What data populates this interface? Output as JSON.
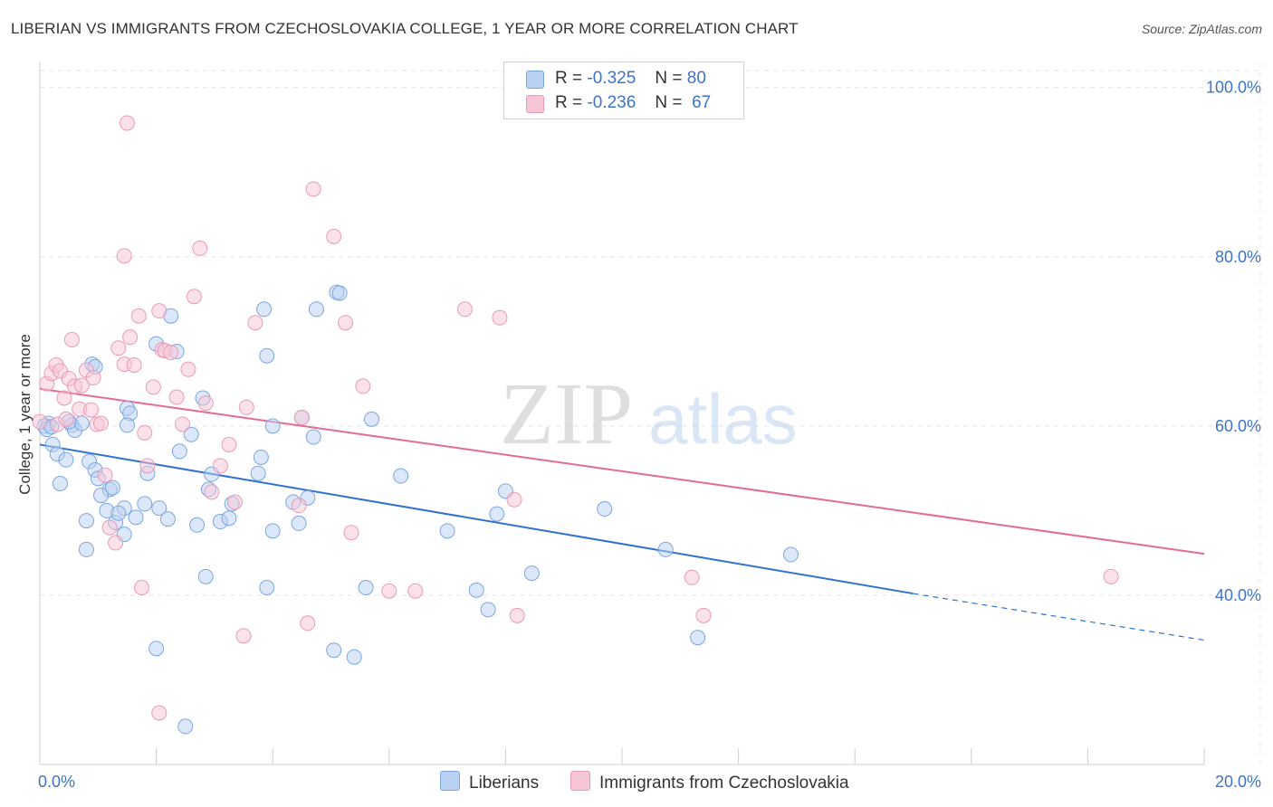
{
  "header": {
    "title": "LIBERIAN VS IMMIGRANTS FROM CZECHOSLOVAKIA COLLEGE, 1 YEAR OR MORE CORRELATION CHART",
    "source": "Source: ZipAtlas.com"
  },
  "watermark": {
    "zip": "ZIP",
    "atlas": "atlas"
  },
  "legend": {
    "r_label": "R =",
    "n_label": "N =",
    "series": [
      {
        "r": "-0.325",
        "n": "80"
      },
      {
        "r": "-0.236",
        "n": "67"
      }
    ]
  },
  "bottom_legend": [
    "Liberians",
    "Immigrants from Czechoslovakia"
  ],
  "colors": {
    "blue_fill": "#b9d2f3",
    "blue_stroke": "#7aa6e0",
    "blue_line": "#3070d0",
    "pink_fill": "#f7c6d6",
    "pink_stroke": "#ea9ab5",
    "pink_line": "#e46a97",
    "tick_text": "#3d74c9",
    "grid": "#e3e3e3"
  },
  "chart_data": {
    "type": "scatter",
    "title": "LIBERIAN VS IMMIGRANTS FROM CZECHOSLOVAKIA COLLEGE, 1 YEAR OR MORE CORRELATION CHART",
    "xlabel": "",
    "ylabel": "College, 1 year or more",
    "xlim": [
      0,
      20
    ],
    "ylim": [
      20,
      102
    ],
    "x_tick_labels": [
      "0.0%",
      "20.0%"
    ],
    "y_ticks": [
      40,
      60,
      80,
      100
    ],
    "y_tick_labels": [
      "40.0%",
      "60.0%",
      "80.0%",
      "100.0%"
    ],
    "grid": true,
    "legend_position": "top-center",
    "series": [
      {
        "name": "Liberians",
        "r": -0.325,
        "n": 80,
        "trend": {
          "x": [
            0,
            15.0
          ],
          "y": [
            57.8,
            40.2
          ],
          "dashed_extension_to": [
            20,
            34.7
          ]
        },
        "points": [
          [
            0.15,
            60.3
          ],
          [
            0.08,
            60.0
          ],
          [
            0.12,
            59.6
          ],
          [
            0.22,
            57.8
          ],
          [
            0.3,
            56.7
          ],
          [
            0.45,
            56.0
          ],
          [
            0.35,
            53.2
          ],
          [
            0.55,
            60.1
          ],
          [
            0.6,
            59.5
          ],
          [
            0.72,
            60.3
          ],
          [
            0.9,
            67.3
          ],
          [
            0.95,
            67.0
          ],
          [
            1.5,
            62.1
          ],
          [
            1.55,
            61.5
          ],
          [
            1.5,
            60.1
          ],
          [
            0.85,
            55.8
          ],
          [
            0.95,
            54.8
          ],
          [
            1.0,
            53.8
          ],
          [
            1.2,
            52.5
          ],
          [
            1.25,
            52.7
          ],
          [
            1.05,
            51.8
          ],
          [
            1.15,
            50.0
          ],
          [
            1.45,
            50.3
          ],
          [
            1.8,
            50.8
          ],
          [
            2.05,
            50.3
          ],
          [
            1.65,
            49.2
          ],
          [
            2.2,
            49.0
          ],
          [
            0.8,
            48.8
          ],
          [
            1.3,
            48.6
          ],
          [
            1.45,
            47.2
          ],
          [
            0.8,
            45.4
          ],
          [
            2.25,
            73.0
          ],
          [
            2.0,
            69.7
          ],
          [
            2.35,
            68.8
          ],
          [
            2.8,
            63.3
          ],
          [
            2.6,
            59.0
          ],
          [
            2.4,
            57.0
          ],
          [
            2.95,
            54.3
          ],
          [
            2.9,
            52.5
          ],
          [
            1.85,
            54.4
          ],
          [
            3.3,
            50.8
          ],
          [
            3.1,
            48.7
          ],
          [
            3.25,
            49.1
          ],
          [
            2.85,
            42.2
          ],
          [
            2.0,
            33.7
          ],
          [
            2.5,
            24.5
          ],
          [
            3.85,
            73.8
          ],
          [
            3.9,
            68.3
          ],
          [
            4.0,
            60.0
          ],
          [
            4.5,
            61.0
          ],
          [
            4.7,
            58.7
          ],
          [
            3.8,
            56.3
          ],
          [
            3.75,
            54.4
          ],
          [
            4.35,
            51.0
          ],
          [
            4.6,
            51.5
          ],
          [
            4.45,
            48.5
          ],
          [
            4.0,
            47.6
          ],
          [
            3.9,
            40.9
          ],
          [
            4.75,
            73.8
          ],
          [
            5.1,
            75.8
          ],
          [
            5.15,
            75.7
          ],
          [
            5.7,
            60.8
          ],
          [
            5.05,
            33.5
          ],
          [
            5.4,
            32.7
          ],
          [
            5.6,
            40.9
          ],
          [
            6.2,
            54.1
          ],
          [
            7.0,
            47.6
          ],
          [
            7.5,
            40.6
          ],
          [
            7.7,
            38.3
          ],
          [
            7.85,
            49.6
          ],
          [
            8.0,
            52.3
          ],
          [
            8.45,
            42.6
          ],
          [
            9.7,
            50.2
          ],
          [
            10.75,
            45.4
          ],
          [
            11.3,
            35.0
          ],
          [
            12.9,
            44.8
          ],
          [
            0.2,
            59.9
          ],
          [
            0.5,
            60.5
          ],
          [
            1.35,
            49.7
          ],
          [
            2.7,
            48.3
          ]
        ]
      },
      {
        "name": "Immigrants from Czechoslovakia",
        "r": -0.236,
        "n": 67,
        "trend": {
          "x": [
            0,
            20
          ],
          "y": [
            64.4,
            44.9
          ]
        },
        "points": [
          [
            0.0,
            60.5
          ],
          [
            0.12,
            65.0
          ],
          [
            0.2,
            66.2
          ],
          [
            0.28,
            67.2
          ],
          [
            0.35,
            66.5
          ],
          [
            0.42,
            63.3
          ],
          [
            0.5,
            65.6
          ],
          [
            0.55,
            70.2
          ],
          [
            0.6,
            64.7
          ],
          [
            0.68,
            62.0
          ],
          [
            0.72,
            64.8
          ],
          [
            0.8,
            66.6
          ],
          [
            0.88,
            61.9
          ],
          [
            0.92,
            65.7
          ],
          [
            0.98,
            60.2
          ],
          [
            1.05,
            60.3
          ],
          [
            1.12,
            54.2
          ],
          [
            1.2,
            48.0
          ],
          [
            1.3,
            46.2
          ],
          [
            1.35,
            69.2
          ],
          [
            1.45,
            67.3
          ],
          [
            1.55,
            70.5
          ],
          [
            1.62,
            67.2
          ],
          [
            1.7,
            73.0
          ],
          [
            1.8,
            59.2
          ],
          [
            1.85,
            55.3
          ],
          [
            1.95,
            64.6
          ],
          [
            2.05,
            73.6
          ],
          [
            2.1,
            69.0
          ],
          [
            2.15,
            68.9
          ],
          [
            2.25,
            68.7
          ],
          [
            2.35,
            63.4
          ],
          [
            2.45,
            60.2
          ],
          [
            2.55,
            66.7
          ],
          [
            2.65,
            75.3
          ],
          [
            2.75,
            81.0
          ],
          [
            2.85,
            62.7
          ],
          [
            2.95,
            52.2
          ],
          [
            3.1,
            55.3
          ],
          [
            3.25,
            57.8
          ],
          [
            3.35,
            51.0
          ],
          [
            3.55,
            62.2
          ],
          [
            3.7,
            72.2
          ],
          [
            1.5,
            95.8
          ],
          [
            1.45,
            80.1
          ],
          [
            4.5,
            61.0
          ],
          [
            4.7,
            88.0
          ],
          [
            4.45,
            50.6
          ],
          [
            4.6,
            36.7
          ],
          [
            5.05,
            82.4
          ],
          [
            5.25,
            72.2
          ],
          [
            5.35,
            47.4
          ],
          [
            5.55,
            64.7
          ],
          [
            6.0,
            40.5
          ],
          [
            6.45,
            40.5
          ],
          [
            7.3,
            73.8
          ],
          [
            7.9,
            72.8
          ],
          [
            8.15,
            51.3
          ],
          [
            8.2,
            37.6
          ],
          [
            11.4,
            37.6
          ],
          [
            11.2,
            42.1
          ],
          [
            18.4,
            42.2
          ],
          [
            2.05,
            26.1
          ],
          [
            1.75,
            40.9
          ],
          [
            3.5,
            35.2
          ],
          [
            0.3,
            60.2
          ],
          [
            0.45,
            60.8
          ]
        ]
      }
    ]
  }
}
